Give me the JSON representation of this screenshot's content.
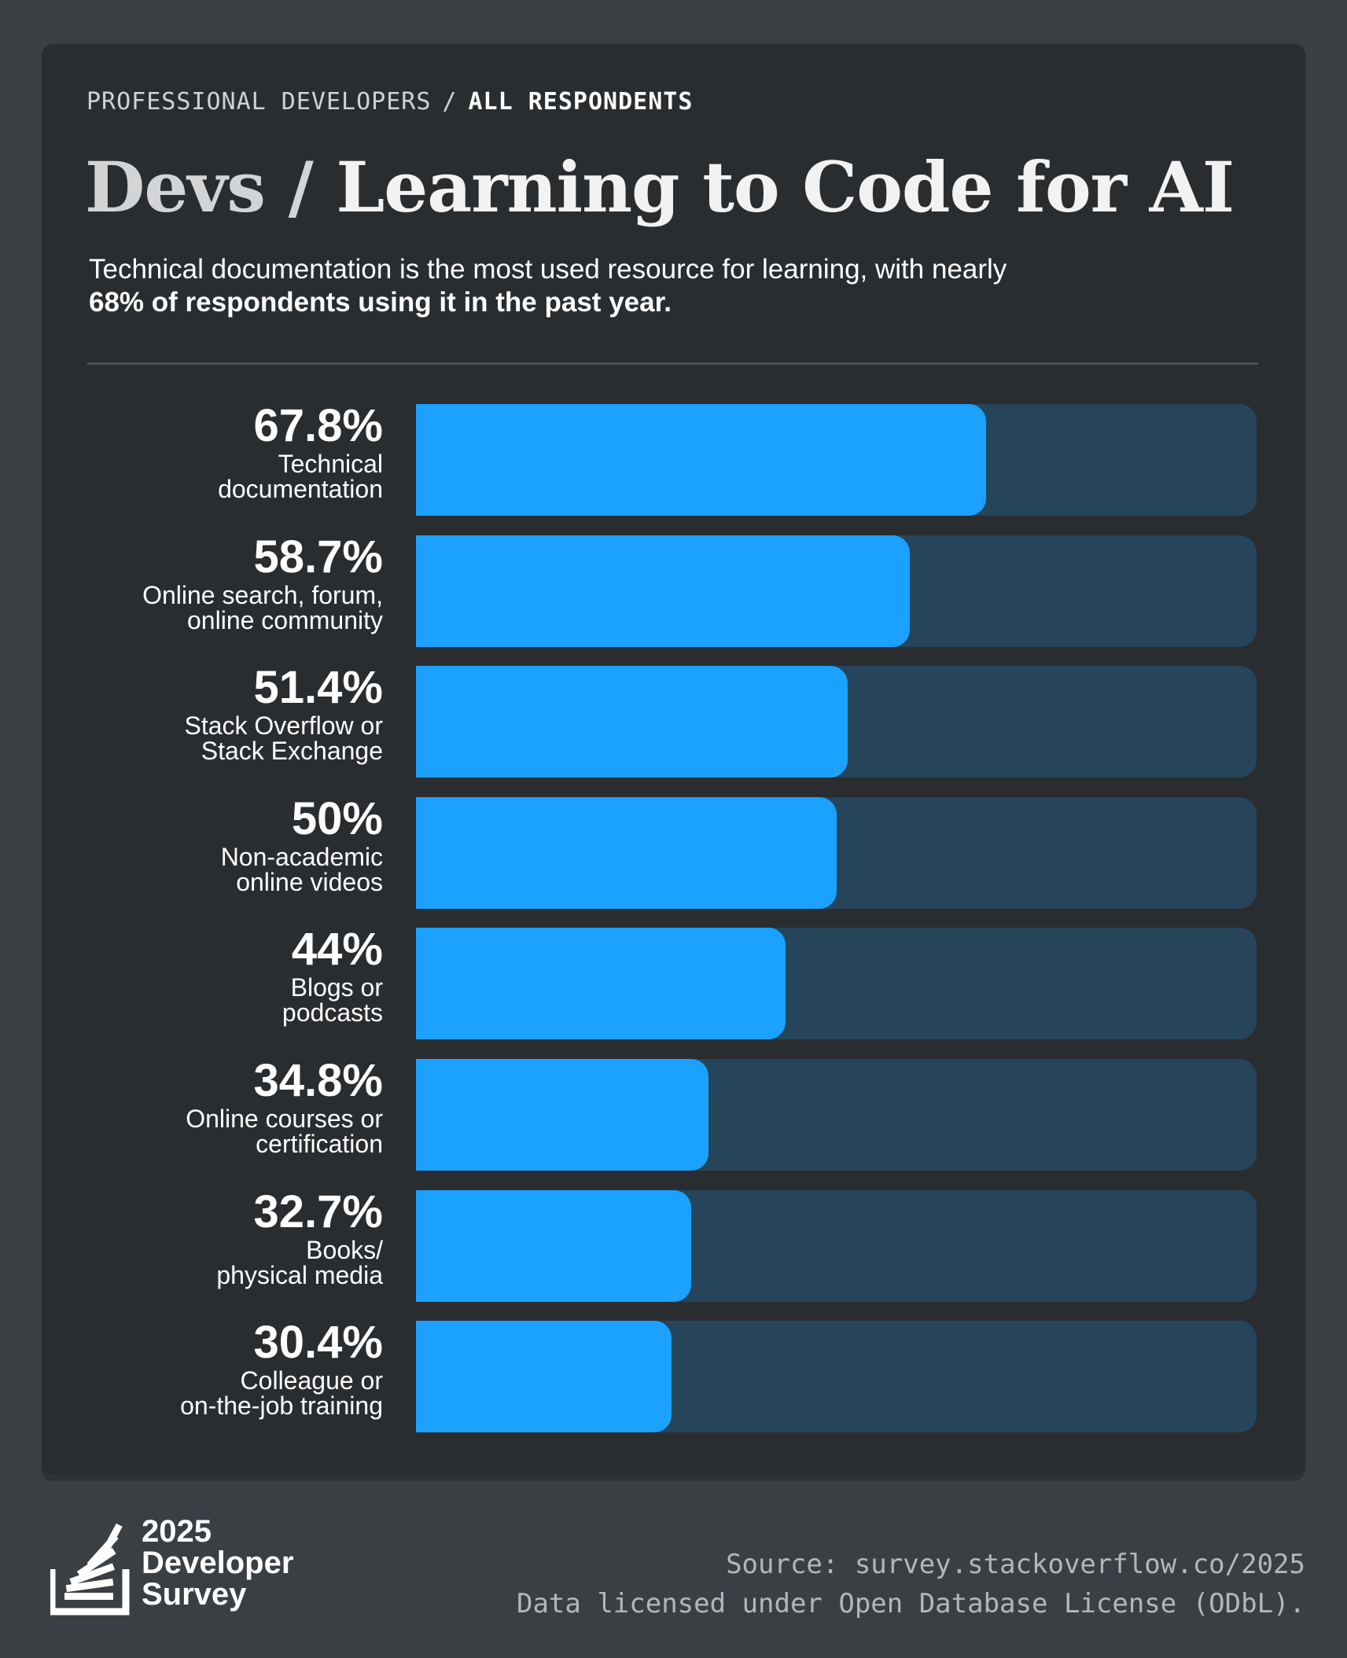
{
  "breadcrumb": {
    "parent": "PROFESSIONAL DEVELOPERS",
    "separator": "/",
    "current": "ALL RESPONDENTS"
  },
  "title": {
    "prefix": "Devs /",
    "main": "Learning to Code for AI"
  },
  "subtitle": {
    "line1": "Technical documentation is the most used resource for learning, with nearly",
    "line2_bold": "68% of respondents using it in the past year."
  },
  "colors": {
    "bar_fill": "#1ba1ff",
    "bar_track": "#26455a",
    "card_background": "#2a2d30",
    "page_background": "#3a3f44"
  },
  "chart_data": {
    "type": "bar",
    "orientation": "horizontal",
    "unit": "%",
    "xlim": [
      0,
      100
    ],
    "grid": false,
    "legend": "none",
    "categories": [
      "Technical documentation",
      "Online search, forum, online community",
      "Stack Overflow or Stack Exchange",
      "Non-academic online videos",
      "Blogs or podcasts",
      "Online courses or certification",
      "Books/ physical media",
      "Colleague or on-the-job training"
    ],
    "category_lines": [
      [
        "Technical",
        "documentation"
      ],
      [
        "Online search, forum,",
        "online community"
      ],
      [
        "Stack Overflow or",
        "Stack Exchange"
      ],
      [
        "Non-academic",
        "online videos"
      ],
      [
        "Blogs or",
        "podcasts"
      ],
      [
        "Online courses or",
        "certification"
      ],
      [
        "Books/",
        "physical media"
      ],
      [
        "Colleague or",
        "on-the-job training"
      ]
    ],
    "values": [
      67.8,
      58.7,
      51.4,
      50,
      44,
      34.8,
      32.7,
      30.4
    ],
    "value_labels": [
      "67.8%",
      "58.7%",
      "51.4%",
      "50%",
      "44%",
      "34.8%",
      "32.7%",
      "30.4%"
    ]
  },
  "footer": {
    "logo": {
      "icon": "stack-overflow-stack-icon",
      "year": "2025",
      "line2": "Developer",
      "line3": "Survey"
    },
    "source": "Source: survey.stackoverflow.co/2025",
    "license": "Data licensed under Open Database License (ODbL)."
  }
}
